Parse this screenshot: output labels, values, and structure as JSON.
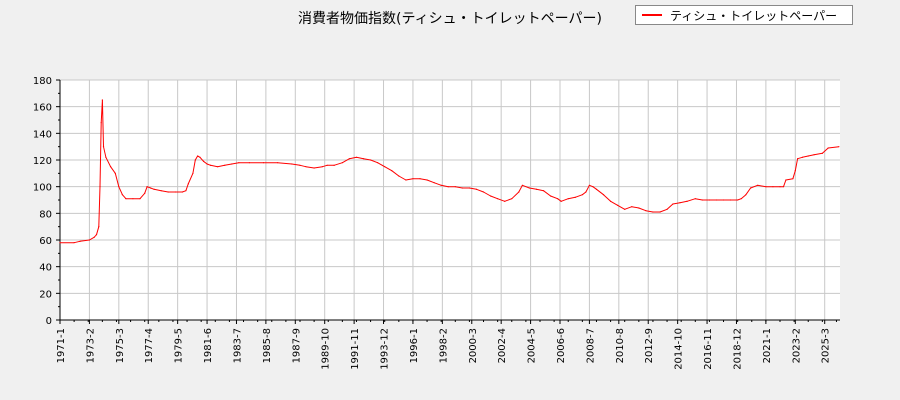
{
  "chart_data": {
    "type": "line",
    "title": "消費者物価指数(ティシュ・トイレットペーパー)",
    "xlabel": "",
    "ylabel": "",
    "ylim": [
      0,
      180
    ],
    "yticks": [
      0,
      20,
      40,
      60,
      80,
      100,
      120,
      140,
      160,
      180
    ],
    "xlim": [
      "1971-01",
      "2026-04"
    ],
    "xtick_labels": [
      "1971-1",
      "1973-2",
      "1975-3",
      "1977-4",
      "1979-5",
      "1981-6",
      "1983-7",
      "1985-8",
      "1987-9",
      "1989-10",
      "1991-11",
      "1993-12",
      "1996-1",
      "1998-2",
      "2000-3",
      "2002-4",
      "2004-5",
      "2006-6",
      "2008-7",
      "2010-8",
      "2012-9",
      "2014-10",
      "2016-11",
      "2018-12",
      "2021-1",
      "2023-2",
      "2025-3"
    ],
    "grid": true,
    "legend_position": "top-right",
    "series": [
      {
        "name": "ティシュ・トイレットペーパー",
        "color": "#ff0000",
        "points": [
          [
            "1971-01",
            58
          ],
          [
            "1972-01",
            58
          ],
          [
            "1972-06",
            59
          ],
          [
            "1973-02",
            60
          ],
          [
            "1973-06",
            62
          ],
          [
            "1973-08",
            64
          ],
          [
            "1973-10",
            70
          ],
          [
            "1973-11",
            100
          ],
          [
            "1973-12",
            148
          ],
          [
            "1974-01",
            165
          ],
          [
            "1974-02",
            130
          ],
          [
            "1974-04",
            122
          ],
          [
            "1974-08",
            115
          ],
          [
            "1974-12",
            110
          ],
          [
            "1975-03",
            100
          ],
          [
            "1975-06",
            94
          ],
          [
            "1975-09",
            91
          ],
          [
            "1976-03",
            91
          ],
          [
            "1976-09",
            91
          ],
          [
            "1977-01",
            95
          ],
          [
            "1977-03",
            100
          ],
          [
            "1977-06",
            99
          ],
          [
            "1977-09",
            98
          ],
          [
            "1978-03",
            97
          ],
          [
            "1978-09",
            96
          ],
          [
            "1979-03",
            96
          ],
          [
            "1979-09",
            96
          ],
          [
            "1979-12",
            97
          ],
          [
            "1980-02",
            102
          ],
          [
            "1980-06",
            110
          ],
          [
            "1980-08",
            120
          ],
          [
            "1980-10",
            123
          ],
          [
            "1980-12",
            122
          ],
          [
            "1981-03",
            119
          ],
          [
            "1981-06",
            117
          ],
          [
            "1981-09",
            116
          ],
          [
            "1982-03",
            115
          ],
          [
            "1982-09",
            116
          ],
          [
            "1983-03",
            117
          ],
          [
            "1983-09",
            118
          ],
          [
            "1984-06",
            118
          ],
          [
            "1985-06",
            118
          ],
          [
            "1986-06",
            118
          ],
          [
            "1987-06",
            117
          ],
          [
            "1988-01",
            116
          ],
          [
            "1988-06",
            115
          ],
          [
            "1989-01",
            114
          ],
          [
            "1989-08",
            115
          ],
          [
            "1989-12",
            116
          ],
          [
            "1990-06",
            116
          ],
          [
            "1991-01",
            118
          ],
          [
            "1991-07",
            121
          ],
          [
            "1992-01",
            122
          ],
          [
            "1992-07",
            121
          ],
          [
            "1993-01",
            120
          ],
          [
            "1993-07",
            118
          ],
          [
            "1994-01",
            115
          ],
          [
            "1994-07",
            112
          ],
          [
            "1995-01",
            108
          ],
          [
            "1995-07",
            105
          ],
          [
            "1996-01",
            106
          ],
          [
            "1996-07",
            106
          ],
          [
            "1997-01",
            105
          ],
          [
            "1997-07",
            103
          ],
          [
            "1998-01",
            101
          ],
          [
            "1998-07",
            100
          ],
          [
            "1999-01",
            100
          ],
          [
            "1999-07",
            99
          ],
          [
            "2000-01",
            99
          ],
          [
            "2000-07",
            98
          ],
          [
            "2001-01",
            96
          ],
          [
            "2001-07",
            93
          ],
          [
            "2002-01",
            91
          ],
          [
            "2002-07",
            89
          ],
          [
            "2003-01",
            91
          ],
          [
            "2003-07",
            96
          ],
          [
            "2003-10",
            101
          ],
          [
            "2004-04",
            99
          ],
          [
            "2004-10",
            98
          ],
          [
            "2005-04",
            97
          ],
          [
            "2005-10",
            93
          ],
          [
            "2006-04",
            91
          ],
          [
            "2006-07",
            89
          ],
          [
            "2007-01",
            91
          ],
          [
            "2007-07",
            92
          ],
          [
            "2008-01",
            94
          ],
          [
            "2008-04",
            96
          ],
          [
            "2008-07",
            101
          ],
          [
            "2008-10",
            100
          ],
          [
            "2009-01",
            98
          ],
          [
            "2009-07",
            94
          ],
          [
            "2010-01",
            89
          ],
          [
            "2010-07",
            86
          ],
          [
            "2011-01",
            83
          ],
          [
            "2011-07",
            85
          ],
          [
            "2012-01",
            84
          ],
          [
            "2012-07",
            82
          ],
          [
            "2013-01",
            81
          ],
          [
            "2013-07",
            81
          ],
          [
            "2014-01",
            83
          ],
          [
            "2014-06",
            87
          ],
          [
            "2014-12",
            88
          ],
          [
            "2015-06",
            89
          ],
          [
            "2016-01",
            91
          ],
          [
            "2016-07",
            90
          ],
          [
            "2017-01",
            90
          ],
          [
            "2017-07",
            90
          ],
          [
            "2018-01",
            90
          ],
          [
            "2018-07",
            90
          ],
          [
            "2019-01",
            90
          ],
          [
            "2019-04",
            91
          ],
          [
            "2019-08",
            94
          ],
          [
            "2019-12",
            99
          ],
          [
            "2020-06",
            101
          ],
          [
            "2021-01",
            100
          ],
          [
            "2021-07",
            100
          ],
          [
            "2022-01",
            100
          ],
          [
            "2022-04",
            100
          ],
          [
            "2022-06",
            105
          ],
          [
            "2022-12",
            106
          ],
          [
            "2023-02",
            112
          ],
          [
            "2023-04",
            121
          ],
          [
            "2023-08",
            122
          ],
          [
            "2024-01",
            123
          ],
          [
            "2024-06",
            124
          ],
          [
            "2025-01",
            125
          ],
          [
            "2025-06",
            129
          ],
          [
            "2026-03",
            130
          ]
        ]
      }
    ]
  }
}
